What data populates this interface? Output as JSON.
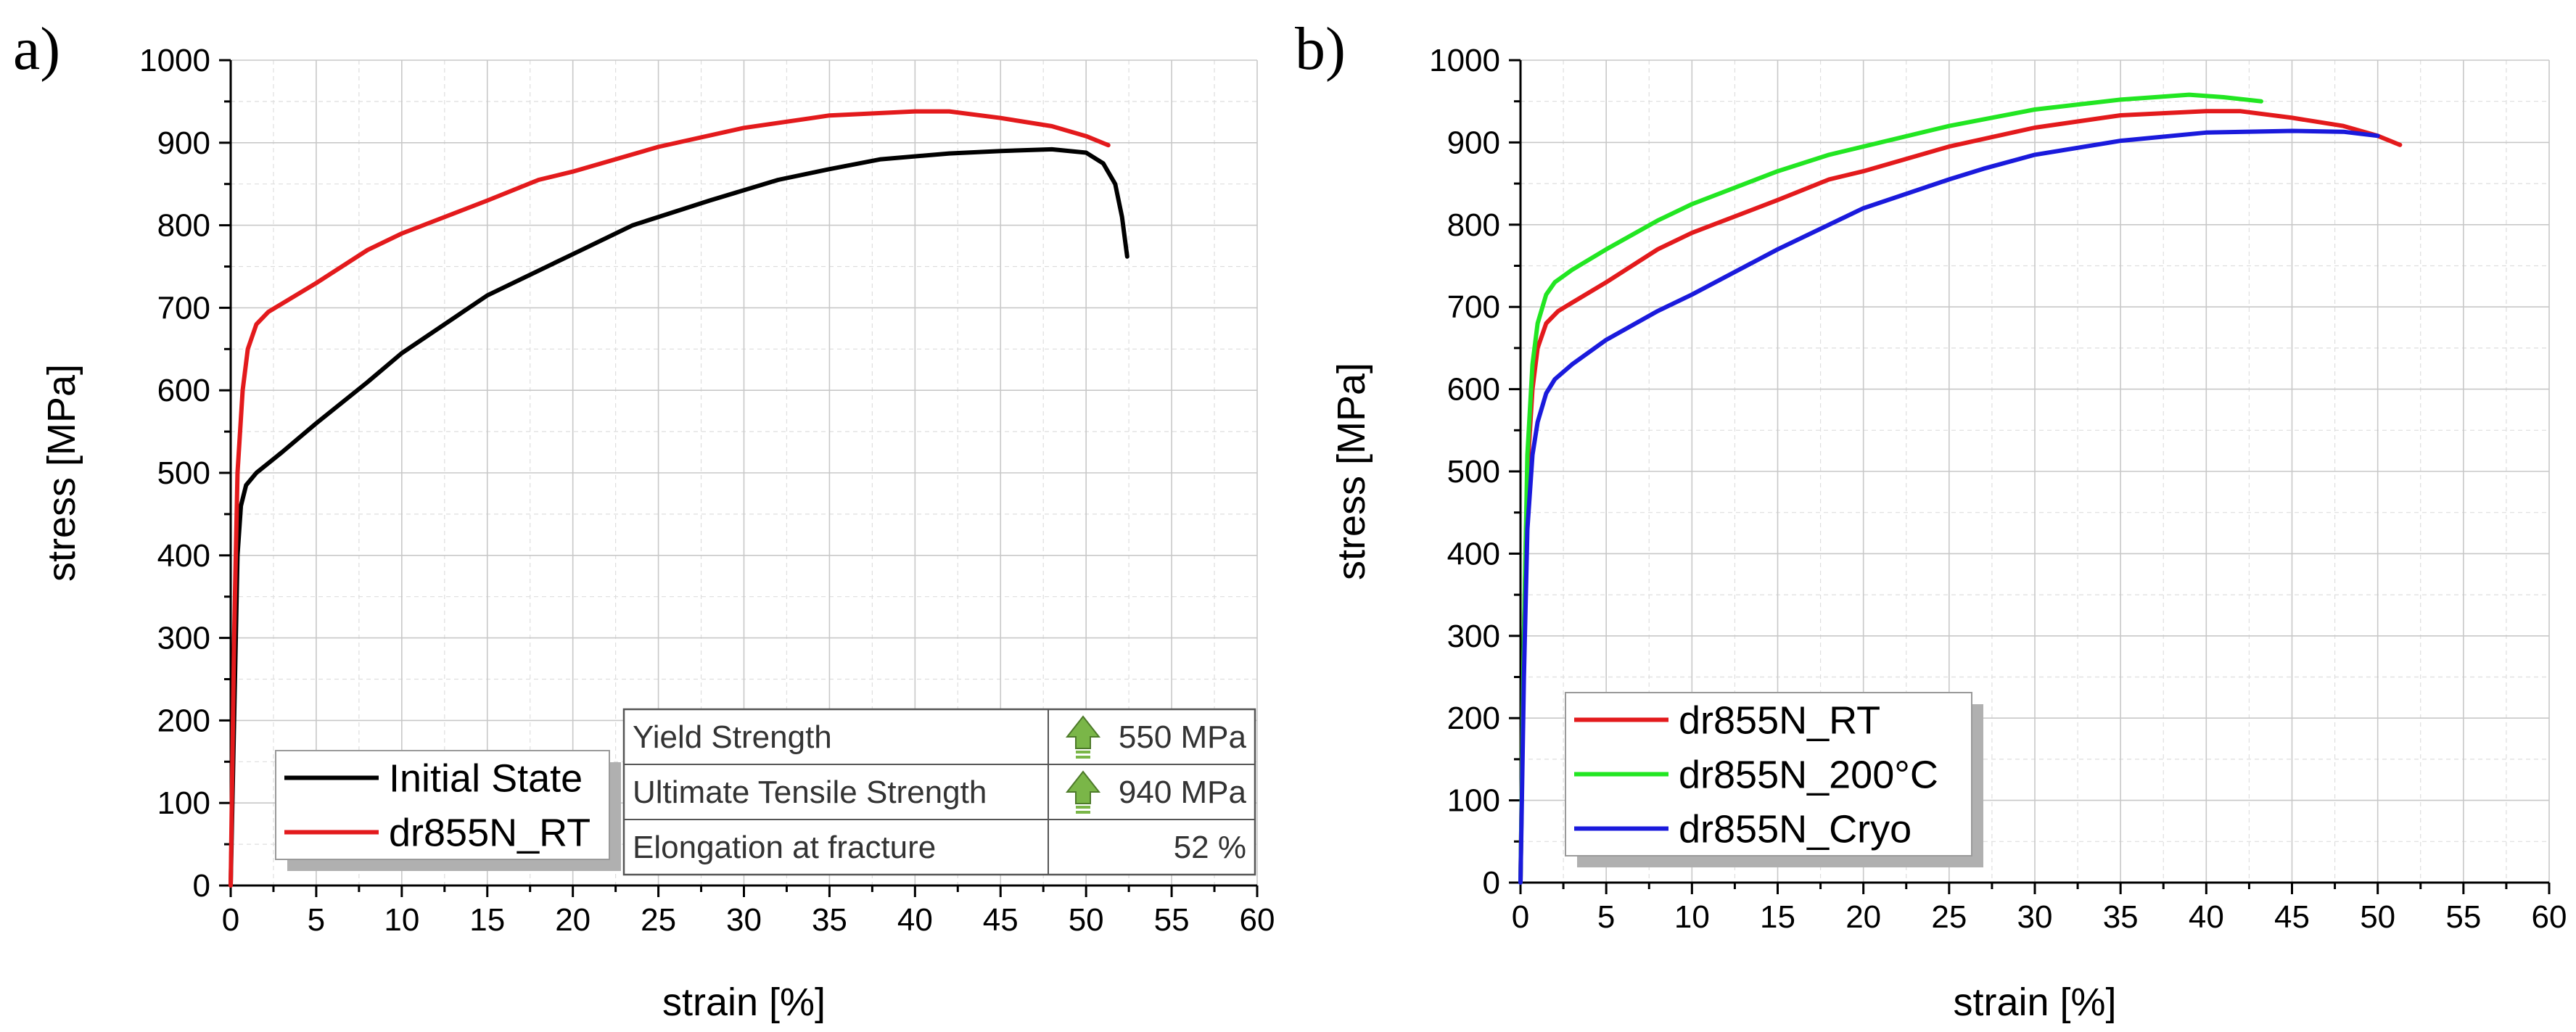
{
  "chart_data": [
    {
      "type": "line",
      "panel_label": "a)",
      "xlabel": "strain [%]",
      "ylabel": "stress [MPa]",
      "xlim": [
        0,
        60
      ],
      "ylim": [
        0,
        1000
      ],
      "xticks": [
        0,
        5,
        10,
        15,
        20,
        25,
        30,
        35,
        40,
        45,
        50,
        55,
        60
      ],
      "yticks": [
        0,
        100,
        200,
        300,
        400,
        500,
        600,
        700,
        800,
        900,
        1000
      ],
      "grid": true,
      "legend_position": "bottom-left",
      "series": [
        {
          "name": "Initial State",
          "color": "#000000",
          "points": [
            [
              0,
              0
            ],
            [
              0.2,
              200
            ],
            [
              0.4,
              400
            ],
            [
              0.6,
              460
            ],
            [
              0.9,
              485
            ],
            [
              1.5,
              500
            ],
            [
              3,
              525
            ],
            [
              5,
              560
            ],
            [
              8,
              610
            ],
            [
              10,
              645
            ],
            [
              15,
              715
            ],
            [
              20,
              765
            ],
            [
              23.5,
              800
            ],
            [
              28,
              830
            ],
            [
              32,
              855
            ],
            [
              35,
              868
            ],
            [
              38,
              880
            ],
            [
              42,
              887
            ],
            [
              45,
              890
            ],
            [
              48,
              892
            ],
            [
              50,
              888
            ],
            [
              51,
              875
            ],
            [
              51.7,
              850
            ],
            [
              52.1,
              810
            ],
            [
              52.4,
              762
            ]
          ]
        },
        {
          "name": "dr855N_RT",
          "color": "#e31a1c",
          "points": [
            [
              0,
              0
            ],
            [
              0.2,
              300
            ],
            [
              0.4,
              500
            ],
            [
              0.7,
              600
            ],
            [
              1,
              650
            ],
            [
              1.5,
              680
            ],
            [
              2.2,
              695
            ],
            [
              3,
              705
            ],
            [
              5,
              730
            ],
            [
              8,
              770
            ],
            [
              10,
              790
            ],
            [
              15,
              830
            ],
            [
              18,
              855
            ],
            [
              20,
              865
            ],
            [
              25,
              895
            ],
            [
              30,
              918
            ],
            [
              34,
              930
            ],
            [
              35,
              933
            ],
            [
              40,
              938
            ],
            [
              42,
              938
            ],
            [
              45,
              930
            ],
            [
              48,
              920
            ],
            [
              50,
              908
            ],
            [
              51.3,
              897
            ]
          ]
        }
      ],
      "table": {
        "rows": [
          {
            "property": "Yield Strength",
            "value": "550 MPa",
            "arrow": true
          },
          {
            "property": "Ultimate Tensile Strength",
            "value": "940 MPa",
            "arrow": true
          },
          {
            "property": "Elongation at fracture",
            "value": "52 %",
            "arrow": false
          }
        ]
      }
    },
    {
      "type": "line",
      "panel_label": "b)",
      "xlabel": "strain [%]",
      "ylabel": "stress [MPa]",
      "xlim": [
        0,
        60
      ],
      "ylim": [
        0,
        1000
      ],
      "xticks": [
        0,
        5,
        10,
        15,
        20,
        25,
        30,
        35,
        40,
        45,
        50,
        55,
        60
      ],
      "yticks": [
        0,
        100,
        200,
        300,
        400,
        500,
        600,
        700,
        800,
        900,
        1000
      ],
      "grid": true,
      "legend_position": "bottom-left",
      "series": [
        {
          "name": "dr855N_RT",
          "color": "#e31a1c",
          "points": [
            [
              0,
              0
            ],
            [
              0.2,
              300
            ],
            [
              0.4,
              500
            ],
            [
              0.7,
              600
            ],
            [
              1,
              650
            ],
            [
              1.5,
              680
            ],
            [
              2.2,
              695
            ],
            [
              3,
              705
            ],
            [
              5,
              730
            ],
            [
              8,
              770
            ],
            [
              10,
              790
            ],
            [
              15,
              830
            ],
            [
              18,
              855
            ],
            [
              20,
              865
            ],
            [
              25,
              895
            ],
            [
              30,
              918
            ],
            [
              34,
              930
            ],
            [
              35,
              933
            ],
            [
              40,
              938
            ],
            [
              42,
              938
            ],
            [
              45,
              930
            ],
            [
              48,
              920
            ],
            [
              50,
              908
            ],
            [
              51.3,
              897
            ]
          ]
        },
        {
          "name": "dr855N_200°C",
          "color": "#22e622",
          "points": [
            [
              0,
              0
            ],
            [
              0.2,
              300
            ],
            [
              0.4,
              520
            ],
            [
              0.7,
              630
            ],
            [
              1,
              680
            ],
            [
              1.5,
              715
            ],
            [
              2,
              730
            ],
            [
              3,
              745
            ],
            [
              5,
              770
            ],
            [
              8,
              805
            ],
            [
              10,
              825
            ],
            [
              15,
              865
            ],
            [
              18,
              885
            ],
            [
              20,
              895
            ],
            [
              25,
              920
            ],
            [
              30,
              940
            ],
            [
              35,
              952
            ],
            [
              39,
              958
            ],
            [
              41,
              955
            ],
            [
              43.2,
              950
            ]
          ]
        },
        {
          "name": "dr855N_Cryo",
          "color": "#1a1adc",
          "points": [
            [
              0,
              0
            ],
            [
              0.2,
              250
            ],
            [
              0.4,
              430
            ],
            [
              0.7,
              520
            ],
            [
              1,
              560
            ],
            [
              1.5,
              595
            ],
            [
              2,
              612
            ],
            [
              3,
              630
            ],
            [
              5,
              660
            ],
            [
              8,
              695
            ],
            [
              10,
              715
            ],
            [
              15,
              770
            ],
            [
              20,
              820
            ],
            [
              25,
              855
            ],
            [
              27,
              868
            ],
            [
              30,
              885
            ],
            [
              35,
              902
            ],
            [
              40,
              912
            ],
            [
              45,
              914
            ],
            [
              48,
              913
            ],
            [
              50,
              908
            ]
          ]
        }
      ]
    }
  ]
}
